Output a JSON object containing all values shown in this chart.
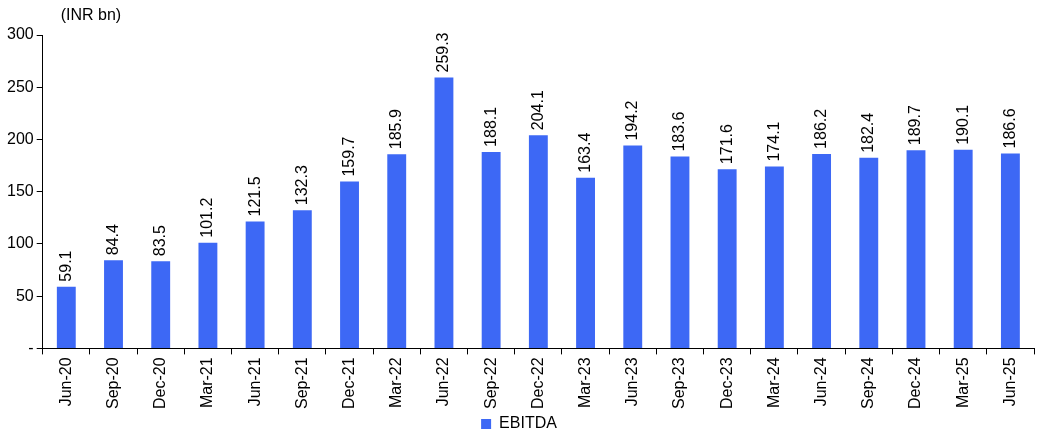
{
  "chart_data": {
    "type": "bar",
    "ylabel": "(INR bn)",
    "categories": [
      "Jun-20",
      "Sep-20",
      "Dec-20",
      "Mar-21",
      "Jun-21",
      "Sep-21",
      "Dec-21",
      "Mar-22",
      "Jun-22",
      "Sep-22",
      "Dec-22",
      "Mar-23",
      "Jun-23",
      "Sep-23",
      "Dec-23",
      "Mar-24",
      "Jun-24",
      "Sep-24",
      "Dec-24",
      "Mar-25",
      "Jun-25"
    ],
    "series": [
      {
        "name": "EBITDA",
        "color": "#3d68f5",
        "values": [
          59.1,
          84.4,
          83.5,
          101.2,
          121.5,
          132.3,
          159.7,
          185.9,
          259.3,
          188.1,
          204.1,
          163.4,
          194.2,
          183.6,
          171.6,
          174.1,
          186.2,
          182.4,
          189.7,
          190.1,
          186.6
        ]
      }
    ],
    "ylim": [
      0,
      300
    ],
    "yticks": [
      {
        "value": 0,
        "label": "-"
      },
      50,
      100,
      150,
      200,
      250,
      300
    ],
    "grid": false,
    "legend": "bottom",
    "data_labels": true
  }
}
